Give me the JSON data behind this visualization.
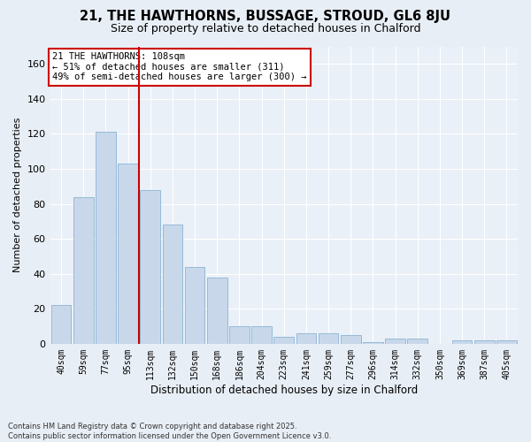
{
  "title": "21, THE HAWTHORNS, BUSSAGE, STROUD, GL6 8JU",
  "subtitle": "Size of property relative to detached houses in Chalford",
  "xlabel": "Distribution of detached houses by size in Chalford",
  "ylabel": "Number of detached properties",
  "bar_color": "#c8d8ea",
  "bar_edge_color": "#8ab4d4",
  "categories": [
    "40sqm",
    "59sqm",
    "77sqm",
    "95sqm",
    "113sqm",
    "132sqm",
    "150sqm",
    "168sqm",
    "186sqm",
    "204sqm",
    "223sqm",
    "241sqm",
    "259sqm",
    "277sqm",
    "296sqm",
    "314sqm",
    "332sqm",
    "350sqm",
    "369sqm",
    "387sqm",
    "405sqm"
  ],
  "values": [
    22,
    84,
    121,
    103,
    88,
    68,
    44,
    38,
    10,
    10,
    4,
    6,
    6,
    5,
    1,
    3,
    3,
    0,
    2,
    2,
    2
  ],
  "vline_index": 3.5,
  "vline_color": "#cc0000",
  "annotation_line1": "21 THE HAWTHORNS: 108sqm",
  "annotation_line2": "← 51% of detached houses are smaller (311)",
  "annotation_line3": "49% of semi-detached houses are larger (300) →",
  "annotation_box_edgecolor": "#cc0000",
  "ylim": [
    0,
    170
  ],
  "yticks": [
    0,
    20,
    40,
    60,
    80,
    100,
    120,
    140,
    160
  ],
  "footer_line1": "Contains HM Land Registry data © Crown copyright and database right 2025.",
  "footer_line2": "Contains public sector information licensed under the Open Government Licence v3.0.",
  "bg_color": "#e8eef5",
  "plot_bg_color": "#eaf0f7",
  "grid_color": "#ffffff",
  "title_fontsize": 10.5,
  "subtitle_fontsize": 9,
  "ylabel_fontsize": 8,
  "xlabel_fontsize": 8.5
}
